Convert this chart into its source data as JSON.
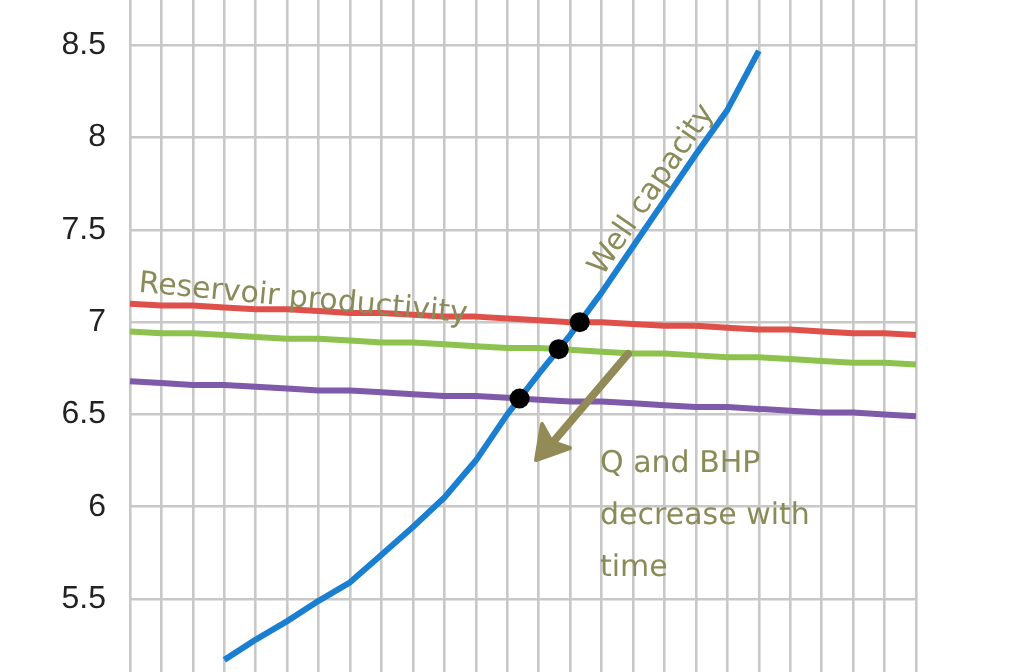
{
  "chart_data": {
    "type": "line",
    "categories": [
      null,
      null,
      null,
      null,
      null,
      null,
      null,
      null,
      null,
      null,
      null,
      null,
      null,
      null,
      null,
      null,
      null,
      null,
      null,
      null,
      null,
      null,
      null,
      null,
      null,
      null
    ],
    "ylim": [
      5.1,
      8.75
    ],
    "yticks": [
      5.5,
      6,
      6.5,
      7,
      7.5,
      8,
      8.5
    ],
    "grid": true,
    "tick_labels": "y",
    "legend": false,
    "marker": "none",
    "line_style": "solid",
    "series": [
      {
        "name": "Well capacity",
        "color": "#1a7fd0",
        "values": [
          null,
          null,
          null,
          5.17,
          5.28,
          5.38,
          5.49,
          5.59,
          5.74,
          5.89,
          6.05,
          6.25,
          6.5,
          6.72,
          6.93,
          7.16,
          7.41,
          7.66,
          7.91,
          8.15,
          8.47,
          null,
          null,
          null,
          null,
          null
        ]
      },
      {
        "name": "Reservoir productivity",
        "color": "#e0504a",
        "values": [
          7.1,
          7.09,
          7.09,
          7.08,
          7.07,
          7.07,
          7.06,
          7.05,
          7.05,
          7.04,
          7.03,
          7.03,
          7.02,
          7.01,
          7.0,
          7.0,
          6.99,
          6.98,
          6.98,
          6.97,
          6.96,
          6.96,
          6.95,
          6.94,
          6.94,
          6.93
        ]
      },
      {
        "color": "#8dc24f",
        "values": [
          6.95,
          6.94,
          6.94,
          6.93,
          6.92,
          6.91,
          6.91,
          6.9,
          6.89,
          6.89,
          6.88,
          6.87,
          6.86,
          6.86,
          6.85,
          6.84,
          6.83,
          6.83,
          6.82,
          6.81,
          6.81,
          6.8,
          6.79,
          6.78,
          6.78,
          6.77
        ]
      },
      {
        "color": "#7f5aa8",
        "values": [
          6.68,
          6.67,
          6.66,
          6.66,
          6.65,
          6.64,
          6.63,
          6.63,
          6.62,
          6.61,
          6.6,
          6.6,
          6.59,
          6.58,
          6.57,
          6.57,
          6.56,
          6.55,
          6.54,
          6.54,
          6.53,
          6.52,
          6.51,
          6.51,
          6.5,
          6.49
        ]
      }
    ],
    "annotations": [
      "Q and BHP decrease with time"
    ]
  }
}
